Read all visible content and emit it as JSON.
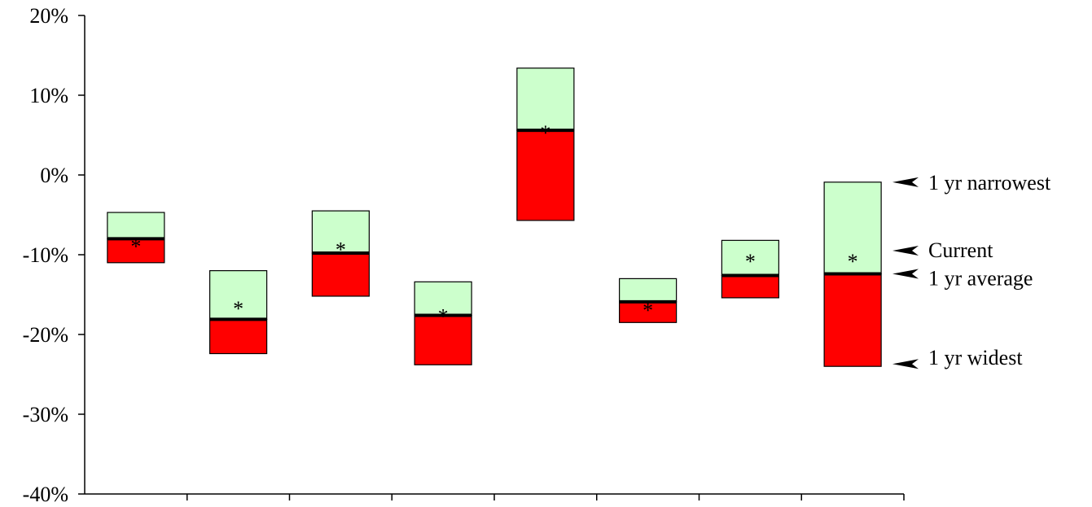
{
  "chart_data": {
    "type": "bar",
    "title": "",
    "xlabel": "",
    "ylabel": "",
    "ylim": [
      -40,
      20
    ],
    "y_ticks": [
      20,
      10,
      0,
      -10,
      -20,
      -30,
      -40
    ],
    "y_tick_labels": [
      "20%",
      "10%",
      "0%",
      "-10%",
      "-20%",
      "-30%",
      "-40%"
    ],
    "grid": false,
    "categories": [
      "",
      "",
      "",
      "",
      "",
      "",
      "",
      ""
    ],
    "series": [
      {
        "name": "1 yr narrowest",
        "values": [
          -4.7,
          -12.0,
          -4.5,
          -13.4,
          13.4,
          -13.0,
          -8.2,
          -0.9
        ]
      },
      {
        "name": "Current",
        "values": [
          -8.2,
          -16.0,
          -8.6,
          -17.0,
          6.0,
          -16.2,
          -10.1,
          -10.1
        ]
      },
      {
        "name": "1 yr average",
        "values": [
          -8.0,
          -18.1,
          -9.8,
          -17.6,
          5.6,
          -15.9,
          -12.6,
          -12.4
        ]
      },
      {
        "name": "1 yr widest",
        "values": [
          -11.0,
          -22.4,
          -15.2,
          -23.8,
          -5.7,
          -18.5,
          -15.4,
          -24.0
        ]
      }
    ],
    "marker_symbol": "*",
    "colors": {
      "upper_band": "#ccffcc",
      "lower_band": "#ff0000",
      "average_line": "#000000",
      "outline": "#000000"
    },
    "legend": {
      "placement": "right",
      "entries": [
        "1 yr narrowest",
        "Current",
        "1 yr average",
        "1 yr widest"
      ]
    }
  }
}
